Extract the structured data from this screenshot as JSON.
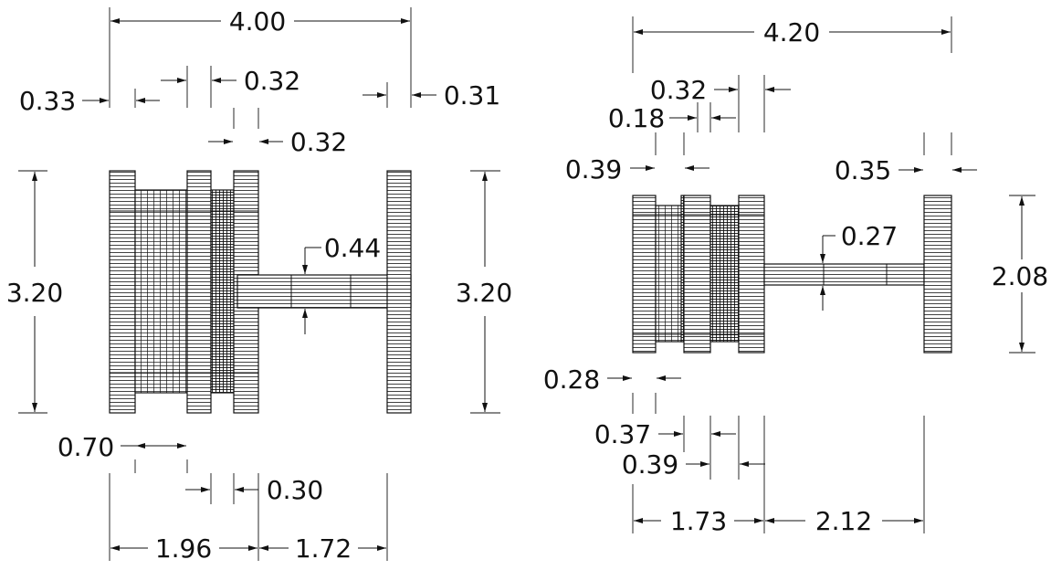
{
  "left_view": {
    "dims": {
      "overall_width": "4.00",
      "left_gap": "0.33",
      "top_mid": "0.32",
      "right_gap": "0.31",
      "inner_gap": "0.32",
      "height_left": "3.20",
      "height_right": "3.20",
      "shaft": "0.44",
      "bottom_a": "0.70",
      "bottom_b": "0.30",
      "span_left": "1.96",
      "span_right": "1.72"
    }
  },
  "right_view": {
    "dims": {
      "overall_width": "4.20",
      "top_a": "0.32",
      "top_b": "0.18",
      "top_c": "0.39",
      "top_d": "0.35",
      "height": "2.08",
      "shaft": "0.27",
      "bottom_a": "0.28",
      "bottom_b": "0.37",
      "bottom_c": "0.39",
      "span_left": "1.73",
      "span_right": "2.12"
    }
  }
}
